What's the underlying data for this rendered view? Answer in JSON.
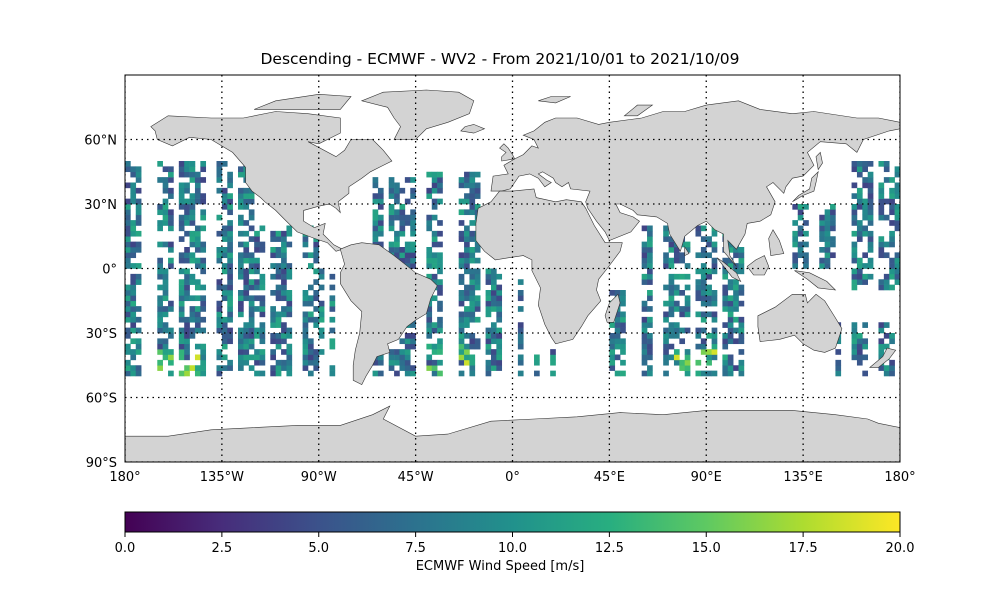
{
  "title": "Descending - ECMWF - WV2 - From 2021/10/01 to 2021/10/09",
  "map": {
    "lon_range": [
      -180,
      180
    ],
    "lat_range": [
      -90,
      90
    ],
    "grid": "dotted",
    "x_ticks": [
      {
        "lon": -180,
        "label": "180°"
      },
      {
        "lon": -135,
        "label": "135°W"
      },
      {
        "lon": -90,
        "label": "90°W"
      },
      {
        "lon": -45,
        "label": "45°W"
      },
      {
        "lon": 0,
        "label": "0°"
      },
      {
        "lon": 45,
        "label": "45°E"
      },
      {
        "lon": 90,
        "label": "90°E"
      },
      {
        "lon": 135,
        "label": "135°E"
      },
      {
        "lon": 180,
        "label": "180°"
      }
    ],
    "y_ticks": [
      {
        "lat": 60,
        "label": "60°N"
      },
      {
        "lat": 30,
        "label": "30°N"
      },
      {
        "lat": 0,
        "label": "0°"
      },
      {
        "lat": -30,
        "label": "30°S"
      },
      {
        "lat": -60,
        "label": "60°S"
      },
      {
        "lat": -90,
        "label": "90°S"
      }
    ],
    "land_color": "#d3d3d3",
    "coast_color": "#333333",
    "colormap": "viridis",
    "swath_regions": [
      {
        "lon": [
          -180,
          -120
        ],
        "lat": [
          -50,
          50
        ]
      },
      {
        "lon": [
          -120,
          -90
        ],
        "lat": [
          -50,
          20
        ]
      },
      {
        "lon": [
          -90,
          -80
        ],
        "lat": [
          -50,
          0
        ]
      },
      {
        "lon": [
          -65,
          -40
        ],
        "lat": [
          -50,
          42
        ]
      },
      {
        "lon": [
          -40,
          -15
        ],
        "lat": [
          -50,
          45
        ]
      },
      {
        "lon": [
          -15,
          5
        ],
        "lat": [
          -50,
          0
        ]
      },
      {
        "lon": [
          10,
          20
        ],
        "lat": [
          -50,
          -38
        ]
      },
      {
        "lon": [
          40,
          55
        ],
        "lat": [
          -50,
          -10
        ]
      },
      {
        "lon": [
          55,
          110
        ],
        "lat": [
          -50,
          20
        ]
      },
      {
        "lon": [
          125,
          150
        ],
        "lat": [
          0,
          30
        ]
      },
      {
        "lon": [
          150,
          180
        ],
        "lat": [
          -10,
          50
        ]
      },
      {
        "lon": [
          150,
          180
        ],
        "lat": [
          -50,
          -25
        ]
      }
    ],
    "high_wind_zones": [
      {
        "lon": [
          -165,
          -145
        ],
        "lat": [
          -50,
          -38
        ]
      },
      {
        "lon": [
          -45,
          -20
        ],
        "lat": [
          -50,
          -35
        ]
      },
      {
        "lon": [
          75,
          100
        ],
        "lat": [
          -50,
          -38
        ]
      }
    ]
  },
  "colorbar": {
    "vmin": 0,
    "vmax": 20,
    "ticks": [
      "0.0",
      "2.5",
      "5.0",
      "7.5",
      "10.0",
      "12.5",
      "15.0",
      "17.5",
      "20.0"
    ],
    "label": "ECMWF Wind Speed [m/s]"
  }
}
